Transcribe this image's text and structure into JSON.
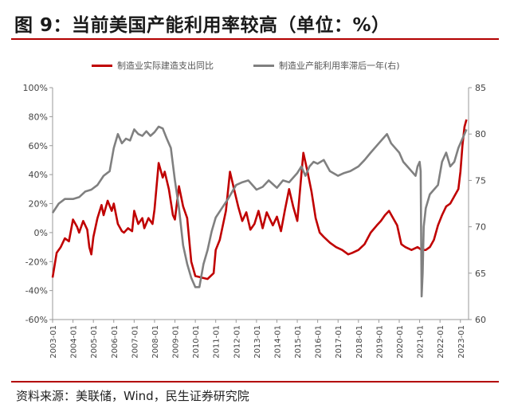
{
  "title": "图 9：当前美国产能利用率较高（单位：%）",
  "source": "资料来源：美联储，Wind，民生证券研究院",
  "colors": {
    "accent": "#b30000",
    "series_red": "#c00000",
    "series_gray": "#808080"
  },
  "chart_data": {
    "type": "line",
    "title": "",
    "y_left": {
      "ylim": [
        -60,
        100
      ],
      "ticks": [
        "-60%",
        "-40%",
        "-20%",
        "0%",
        "20%",
        "40%",
        "60%",
        "80%",
        "100%"
      ]
    },
    "y_right": {
      "ylim": [
        60,
        85
      ],
      "ticks": [
        "60",
        "65",
        "70",
        "75",
        "80",
        "85"
      ]
    },
    "xlim": [
      2003.0,
      2023.4
    ],
    "x_ticks": [
      "2003-01",
      "2004-01",
      "2005-01",
      "2006-01",
      "2007-01",
      "2008-01",
      "2009-01",
      "2010-01",
      "2011-01",
      "2012-01",
      "2013-01",
      "2014-01",
      "2015-01",
      "2016-01",
      "2017-01",
      "2018-01",
      "2019-01",
      "2020-01",
      "2021-01",
      "2022-01",
      "2023-01"
    ],
    "series": [
      {
        "name": "制造业实际建造支出同比",
        "axis": "left",
        "color": "#c00000",
        "x": [
          2003.0,
          2003.2,
          2003.4,
          2003.6,
          2003.8,
          2004.0,
          2004.2,
          2004.3,
          2004.5,
          2004.7,
          2004.8,
          2004.9,
          2005.0,
          2005.2,
          2005.4,
          2005.5,
          2005.7,
          2005.9,
          2006.0,
          2006.2,
          2006.4,
          2006.5,
          2006.7,
          2006.9,
          2007.0,
          2007.2,
          2007.4,
          2007.5,
          2007.7,
          2007.9,
          2008.0,
          2008.2,
          2008.4,
          2008.5,
          2008.7,
          2008.9,
          2009.0,
          2009.2,
          2009.4,
          2009.6,
          2009.8,
          2010.0,
          2010.3,
          2010.6,
          2010.9,
          2011.0,
          2011.2,
          2011.5,
          2011.7,
          2011.9,
          2012.1,
          2012.3,
          2012.5,
          2012.7,
          2012.9,
          2013.1,
          2013.3,
          2013.5,
          2013.8,
          2014.0,
          2014.2,
          2014.4,
          2014.6,
          2014.8,
          2015.0,
          2015.2,
          2015.3,
          2015.5,
          2015.7,
          2015.9,
          2016.1,
          2016.3,
          2016.6,
          2016.9,
          2017.2,
          2017.5,
          2017.7,
          2018.0,
          2018.3,
          2018.6,
          2018.9,
          2019.1,
          2019.3,
          2019.5,
          2019.7,
          2019.9,
          2020.1,
          2020.3,
          2020.6,
          2020.9,
          2021.1,
          2021.3,
          2021.5,
          2021.7,
          2021.9,
          2022.1,
          2022.3,
          2022.5,
          2022.7,
          2022.9,
          2023.0,
          2023.1,
          2023.2,
          2023.3
        ],
        "values": [
          -31,
          -14,
          -10,
          -4,
          -6,
          9,
          4,
          0,
          8,
          2,
          -10,
          -15,
          -3,
          10,
          19,
          12,
          22,
          15,
          20,
          6,
          1,
          0,
          3,
          1,
          15,
          6,
          10,
          3,
          10,
          6,
          16,
          48,
          38,
          42,
          30,
          12,
          9,
          32,
          18,
          10,
          -20,
          -30,
          -31,
          -32,
          -28,
          -12,
          -5,
          15,
          42,
          30,
          18,
          8,
          14,
          2,
          6,
          15,
          3,
          14,
          5,
          11,
          1,
          16,
          30,
          18,
          8,
          40,
          55,
          42,
          28,
          10,
          0,
          -3,
          -7,
          -10,
          -12,
          -15,
          -14,
          -12,
          -8,
          0,
          5,
          8,
          12,
          15,
          10,
          5,
          -8,
          -10,
          -12,
          -10,
          -12,
          -12,
          -10,
          -5,
          5,
          12,
          18,
          20,
          25,
          30,
          42,
          60,
          73,
          78
        ]
      },
      {
        "name": "制造业产能利用率滞后一年(右)",
        "axis": "right",
        "color": "#808080",
        "x": [
          2003.0,
          2003.3,
          2003.6,
          2004.0,
          2004.3,
          2004.6,
          2004.9,
          2005.2,
          2005.5,
          2005.8,
          2006.0,
          2006.2,
          2006.4,
          2006.6,
          2006.8,
          2007.0,
          2007.2,
          2007.4,
          2007.6,
          2007.8,
          2008.0,
          2008.2,
          2008.4,
          2008.6,
          2008.8,
          2009.0,
          2009.2,
          2009.4,
          2009.6,
          2009.8,
          2010.0,
          2010.2,
          2010.4,
          2010.6,
          2010.8,
          2011.0,
          2011.3,
          2011.6,
          2012.0,
          2012.3,
          2012.6,
          2013.0,
          2013.3,
          2013.6,
          2014.0,
          2014.3,
          2014.6,
          2015.0,
          2015.2,
          2015.4,
          2015.6,
          2015.8,
          2016.0,
          2016.3,
          2016.6,
          2017.0,
          2017.3,
          2017.6,
          2018.0,
          2018.3,
          2018.6,
          2019.0,
          2019.2,
          2019.4,
          2019.6,
          2019.8,
          2020.0,
          2020.2,
          2020.4,
          2020.6,
          2020.8,
          2020.9,
          2021.0,
          2021.05,
          2021.1,
          2021.15,
          2021.2,
          2021.3,
          2021.5,
          2021.7,
          2021.9,
          2022.1,
          2022.3,
          2022.5,
          2022.7,
          2022.9,
          2023.0,
          2023.2,
          2023.3
        ],
        "values": [
          71.5,
          72.5,
          73,
          73,
          73.2,
          73.8,
          74,
          74.5,
          75.5,
          76,
          78.5,
          80,
          79,
          79.5,
          79.3,
          80.5,
          80,
          79.8,
          80.3,
          79.8,
          80.2,
          80.8,
          80.6,
          79.5,
          78.5,
          75,
          72,
          68,
          66,
          64.5,
          63.5,
          63.5,
          66,
          67.5,
          69.5,
          71,
          72,
          73,
          74.5,
          74.8,
          75,
          74,
          74.3,
          75,
          74.2,
          75,
          74.8,
          75.8,
          76.5,
          75.5,
          76.5,
          77,
          76.8,
          77.2,
          76,
          75.5,
          75.8,
          76,
          76.5,
          77.2,
          78,
          79,
          79.5,
          80,
          79,
          78.5,
          78,
          77,
          76.5,
          76,
          75.5,
          76.5,
          77,
          76,
          62.5,
          65,
          70,
          72,
          73.5,
          74,
          74.5,
          77,
          78,
          76.5,
          77,
          78.5,
          79,
          80,
          80.5
        ]
      }
    ]
  }
}
